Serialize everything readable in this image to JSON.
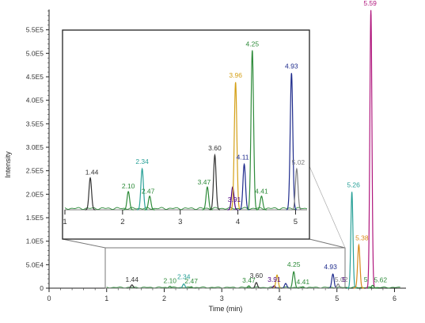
{
  "chart_data": {
    "type": "line",
    "title": "",
    "xlabel": "Time (min)",
    "ylabel": "Intensity",
    "xlim": [
      0,
      6.2
    ],
    "ylim": [
      0,
      600000
    ],
    "x_ticks": [
      0,
      1,
      2,
      3,
      4,
      5,
      6
    ],
    "y_ticks": [
      0,
      50000,
      100000,
      150000,
      200000,
      250000,
      300000,
      350000,
      400000,
      450000,
      500000,
      550000
    ],
    "y_tick_labels": [
      "0",
      "5.0E4",
      "1.0E5",
      "1.5E5",
      "2.0E5",
      "2.5E5",
      "3.0E5",
      "3.5E5",
      "4.0E5",
      "4.5E5",
      "5.0E5",
      "5.5E5"
    ],
    "peaks": [
      {
        "rt": 1.44,
        "label": "1.44",
        "height": 7000,
        "color": "#333333"
      },
      {
        "rt": 2.1,
        "label": "2.10",
        "height": 4000,
        "color": "#2e8b3a"
      },
      {
        "rt": 2.34,
        "label": "2.34",
        "height": 9000,
        "color": "#2aa198"
      },
      {
        "rt": 2.47,
        "label": "2.47",
        "height": 3000,
        "color": "#2e8b3a"
      },
      {
        "rt": 3.47,
        "label": "3.47",
        "height": 5000,
        "color": "#2e8b3a"
      },
      {
        "rt": 3.6,
        "label": "3.60",
        "height": 12000,
        "color": "#333333"
      },
      {
        "rt": 3.91,
        "label": "3.91",
        "height": 5000,
        "color": "#4b0082"
      },
      {
        "rt": 3.96,
        "label": "3.96",
        "height": 28000,
        "color": "#d4a017"
      },
      {
        "rt": 4.11,
        "label": "4.11",
        "height": 10000,
        "color": "#1e2b8c"
      },
      {
        "rt": 4.25,
        "label": "4.25",
        "height": 35000,
        "color": "#2e8b3a"
      },
      {
        "rt": 4.41,
        "label": "4.41",
        "height": 3000,
        "color": "#2e8b3a"
      },
      {
        "rt": 4.93,
        "label": "4.93",
        "height": 30000,
        "color": "#1e2b8c"
      },
      {
        "rt": 5.02,
        "label": "5.02",
        "height": 9000,
        "color": "#808080"
      },
      {
        "rt": 5.26,
        "label": "5.26",
        "height": 205000,
        "color": "#2aa198"
      },
      {
        "rt": 5.38,
        "label": "5.38",
        "height": 92000,
        "color": "#d98a1b"
      },
      {
        "rt": 5.59,
        "label": "5.59",
        "height": 592000,
        "color": "#b0177d"
      },
      {
        "rt": 5.62,
        "label": "5.62",
        "height": 6000,
        "color": "#2e8b3a"
      }
    ],
    "minor_labels": [
      "5",
      "5"
    ],
    "inset": {
      "xlim": [
        1,
        5.2
      ],
      "x_ticks": [
        1,
        2,
        3,
        4,
        5
      ],
      "source_xlim": [
        1,
        5.2
      ],
      "source_ylim": [
        0,
        32000
      ]
    }
  }
}
